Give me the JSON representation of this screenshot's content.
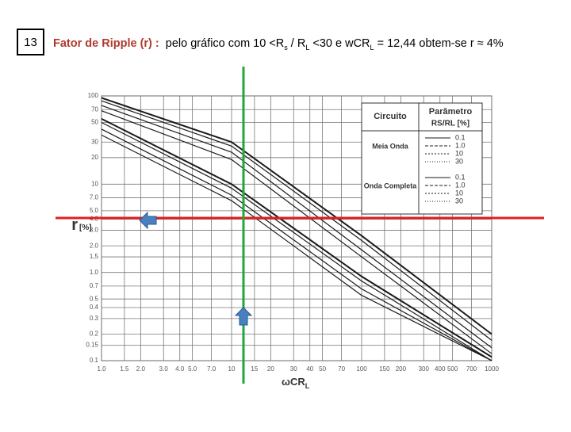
{
  "slide_number": "13",
  "heading": {
    "label": "Fator de Ripple (r) :",
    "text_parts": [
      "pelo gráfico com 10 <R",
      "s",
      " / R",
      "L",
      " <30 e wCR",
      "L",
      " = 12,44 obtem-se r ≈ 4%"
    ]
  },
  "chart_data": {
    "type": "line",
    "log_x": true,
    "log_y": true,
    "grid": true,
    "x_label_parts": [
      "ωCR",
      "L"
    ],
    "y_label_parts": [
      "r",
      "[%]"
    ],
    "legend": {
      "circuit_title": "Circuito",
      "param_title": "Parâmetro",
      "param_unit": "RS/RL [%]",
      "groups": [
        "Meia Onda",
        "Onda Completa"
      ]
    },
    "xlim": [
      1,
      1000
    ],
    "ylim": [
      0.1,
      100
    ],
    "xticks": [
      {
        "value": 1,
        "label": "1.0"
      },
      1.5,
      {
        "value": 2,
        "label": "2.0"
      },
      {
        "value": 3,
        "label": "3.0"
      },
      {
        "value": 4,
        "label": "4.0"
      },
      {
        "value": 5,
        "label": "5.0"
      },
      {
        "value": 7,
        "label": "7.0"
      },
      10,
      15,
      20,
      30,
      40,
      50,
      70,
      100,
      150,
      200,
      300,
      400,
      500,
      700,
      1000
    ],
    "yticks": [
      100,
      70,
      50,
      30,
      20,
      10,
      {
        "value": 7,
        "label": "7.0"
      },
      {
        "value": 5,
        "label": "5.0"
      },
      {
        "value": 4,
        "label": "4.0"
      },
      {
        "value": 3,
        "label": "3.0"
      },
      {
        "value": 2,
        "label": "2.0"
      },
      {
        "value": 1.5,
        "label": "1,5"
      },
      {
        "value": 1,
        "label": "1.0"
      },
      0.7,
      0.5,
      0.4,
      0.3,
      0.2,
      0.15,
      0.1
    ],
    "x": [
      1,
      10,
      100,
      1000
    ],
    "series": [
      {
        "name": "0.1",
        "color": "#1a1a1a",
        "values": [
          95,
          30,
          2.6,
          0.2
        ]
      },
      {
        "name": "1.0",
        "color": "#1a1a1a",
        "values": [
          88,
          27,
          2.3,
          0.17
        ]
      },
      {
        "name": "10",
        "color": "#1a1a1a",
        "values": [
          78,
          23,
          1.8,
          0.14
        ]
      },
      {
        "name": "30",
        "color": "#1a1a1a",
        "values": [
          68,
          19,
          1.5,
          0.12
        ]
      },
      {
        "name": "0.1",
        "color": "#1a1a1a",
        "values": [
          55,
          10,
          0.9,
          0.11
        ]
      },
      {
        "name": "1.0",
        "color": "#1a1a1a",
        "values": [
          50,
          9,
          0.8,
          0.1
        ]
      },
      {
        "name": "10",
        "color": "#1a1a1a",
        "values": [
          42,
          7.5,
          0.65,
          0.1
        ]
      },
      {
        "name": "30",
        "color": "#1a1a1a",
        "values": [
          36,
          6.5,
          0.55,
          0.1
        ]
      }
    ]
  }
}
